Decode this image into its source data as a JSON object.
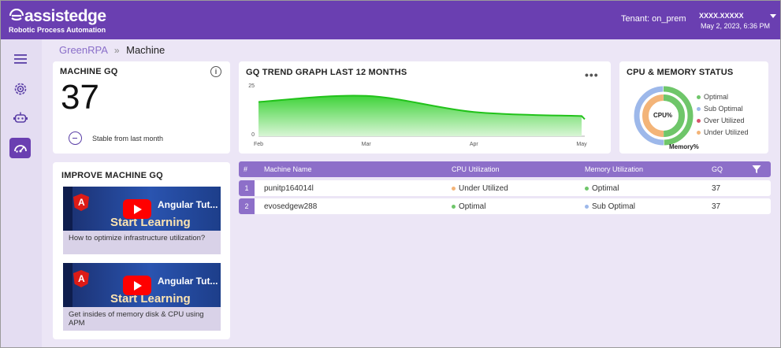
{
  "app": {
    "brand": "assistedge",
    "subtitle": "Robotic Process Automation",
    "tenant": "Tenant: on_prem",
    "user_name": "XXXX.XXXXX",
    "user_datetime": "May 2, 2023, 6:36 PM"
  },
  "sidebar": {
    "items": [
      {
        "icon": "hamburger-menu-icon"
      },
      {
        "icon": "settings-gear-icon"
      },
      {
        "icon": "robot-icon"
      },
      {
        "icon": "machine-gauge-icon",
        "active": true
      }
    ]
  },
  "breadcrumb": {
    "parent": "GreenRPA",
    "separator": "»",
    "current": "Machine"
  },
  "machine_gq": {
    "title": "MACHINE GQ",
    "info_icon": "i",
    "value": "37",
    "trend_text": "Stable from last month"
  },
  "trend_graph": {
    "title": "GQ TREND GRAPH LAST 12 MONTHS",
    "menu_icon": "•••",
    "color": "#21c21a"
  },
  "chart_data": {
    "type": "area",
    "x": [
      "Feb",
      "Mar",
      "Apr",
      "May"
    ],
    "values": [
      17,
      20,
      12,
      10
    ],
    "ylim": [
      0,
      25
    ],
    "yticks": [
      "25",
      "0"
    ],
    "xticks": [
      "Feb",
      "Mar",
      "Apr",
      "May"
    ],
    "title": "",
    "xlabel": "",
    "ylabel": ""
  },
  "status": {
    "title": "CPU & MEMORY STATUS",
    "inner_label": "CPU%",
    "outer_label": "Memory%",
    "legend": [
      {
        "label": "Optimal",
        "color": "#6fc66a"
      },
      {
        "label": "Sub Optimal",
        "color": "#9db8ea"
      },
      {
        "label": "Over Utilized",
        "color": "#d9536b"
      },
      {
        "label": "Under Utilized",
        "color": "#f3b478"
      }
    ]
  },
  "improve": {
    "title": "IMPROVE MACHINE GQ",
    "videos": [
      {
        "caption": "How to optimize infrastructure utilization?",
        "thumb_title": "Start Learning",
        "thumb_top": "Angular Tut..."
      },
      {
        "caption": "Get insides of memory disk & CPU using APM",
        "thumb_title": "Start Learning",
        "thumb_top": "Angular Tut..."
      }
    ]
  },
  "table": {
    "columns": [
      "#",
      "Machine Name",
      "CPU Utilization",
      "Memory Utilization",
      "GQ"
    ],
    "rows": [
      {
        "index": "1",
        "name": "punitp164014l",
        "cpu": "Under Utilized",
        "cpu_color": "#f3b478",
        "memory": "Optimal",
        "memory_color": "#6fc66a",
        "gq": "37"
      },
      {
        "index": "2",
        "name": "evosedgew288",
        "cpu": "Optimal",
        "cpu_color": "#6fc66a",
        "memory": "Sub Optimal",
        "memory_color": "#9db8ea",
        "gq": "37"
      }
    ]
  },
  "colors": {
    "brand_purple": "#6a3fb1",
    "table_header": "#8d6fc9",
    "page_bg": "#ece6f6"
  }
}
